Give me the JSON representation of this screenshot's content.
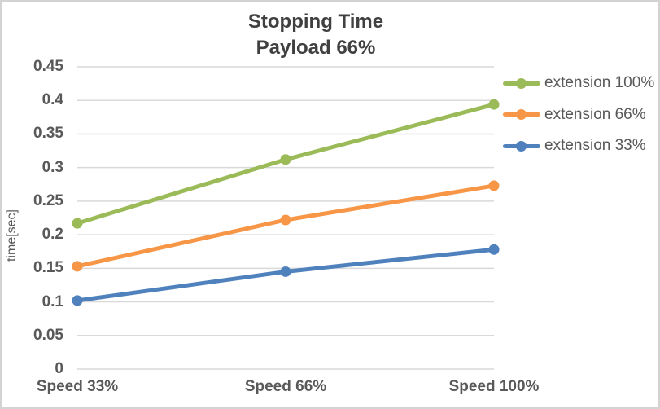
{
  "chart": {
    "title_line1": "Stopping Time",
    "title_line2": "Payload 66%"
  },
  "chart_data": {
    "type": "line",
    "title": "Stopping Time Payload 66%",
    "xlabel": "",
    "ylabel": "time[sec]",
    "categories": [
      "Speed 33%",
      "Speed 66%",
      "Speed 100%"
    ],
    "series": [
      {
        "name": "extension 100%",
        "color": "#9bbb59",
        "values": [
          0.217,
          0.312,
          0.394
        ]
      },
      {
        "name": "extension 66%",
        "color": "#f79646",
        "values": [
          0.153,
          0.222,
          0.273
        ]
      },
      {
        "name": "extension 33%",
        "color": "#4f81bd",
        "values": [
          0.102,
          0.145,
          0.178
        ]
      }
    ],
    "ylim": [
      0,
      0.45
    ],
    "ytick_step": 0.05,
    "ytick_labels": [
      "0",
      "0.05",
      "0.1",
      "0.15",
      "0.2",
      "0.25",
      "0.3",
      "0.35",
      "0.4",
      "0.45"
    ],
    "grid": true,
    "legend_position": "right",
    "marker": "circle"
  },
  "colors": {
    "grid": "#d9d9d9",
    "axis_text": "#595959",
    "title_text": "#404040",
    "frame_border": "#d3d3d3",
    "background": "#ffffff"
  }
}
